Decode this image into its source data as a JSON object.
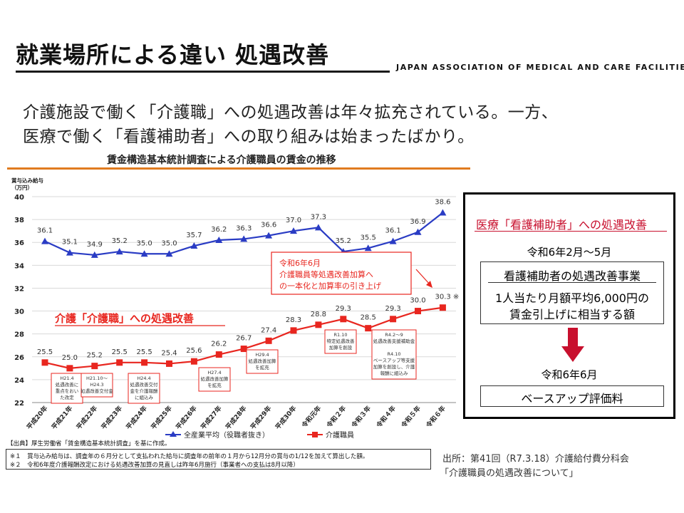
{
  "page": {
    "title": "就業場所による違い 処遇改善",
    "organization": "JAPAN ASSOCIATION OF MEDICAL AND CARE FACILITIES",
    "intro_line1": "介護施設で働く「介護職」への処遇改善は年々拡充されている。一方、",
    "intro_line2": "医療で働く「看護補助者」への取り組みは始まったばかり。"
  },
  "chart_data": {
    "type": "line",
    "title": "賃金構造基本統計調査による介護職員の賃金の推移",
    "ylabel": "賞与込み給与\n（万円）",
    "ylim": [
      22,
      40
    ],
    "yticks": [
      22,
      24,
      26,
      28,
      30,
      32,
      34,
      36,
      38,
      40
    ],
    "categories": [
      "平成20年",
      "平成21年",
      "平成22年",
      "平成23年",
      "平成24年",
      "平成25年",
      "平成26年",
      "平成27年",
      "平成28年",
      "平成29年",
      "平成30年",
      "令和元年",
      "令和２年",
      "令和３年",
      "令和４年",
      "令和５年",
      "令和６年"
    ],
    "series": [
      {
        "name": "全産業平均（役職者抜き）",
        "color": "#2a3cc4",
        "marker": "triangle",
        "values": [
          36.1,
          35.1,
          34.9,
          35.2,
          35.0,
          35.0,
          35.7,
          36.2,
          36.3,
          36.6,
          37.0,
          37.3,
          35.2,
          35.5,
          36.1,
          36.9,
          38.6
        ],
        "labels": [
          "36.1",
          "35.1",
          "34.9",
          "35.2",
          "35.0",
          "35.0",
          "35.7",
          "36.2",
          "36.3",
          "36.6",
          "37.0",
          "37.3",
          "35.2",
          "35.5",
          "36.1",
          "36.9",
          "38.6"
        ]
      },
      {
        "name": "介護職員",
        "color": "#e8261f",
        "marker": "square",
        "values": [
          25.5,
          25.0,
          25.2,
          25.5,
          25.5,
          25.4,
          25.6,
          26.2,
          26.7,
          27.4,
          28.3,
          28.8,
          29.3,
          28.5,
          29.3,
          30.0,
          30.3
        ],
        "labels": [
          "25.5",
          "25.0",
          "25.2",
          "25.5",
          "25.5",
          "25.4",
          "25.6",
          "26.2",
          "26.7",
          "27.4",
          "28.3",
          "28.8",
          "29.3",
          "28.5",
          "29.3",
          "30.0",
          "30.3 ※"
        ]
      }
    ],
    "series_label": "介護「介護職」への処遇改善",
    "callout": {
      "line1": "令和6年6月",
      "line2": "介護職員等処遇改善加算へ",
      "line3": "の一本化と加算率の引き上げ"
    },
    "annotations": [
      {
        "index": 1,
        "lines": [
          "H21.4",
          "処遇改善に",
          "重点をおい",
          "た改定"
        ]
      },
      {
        "index": 2,
        "lines": [
          "H21.10～",
          "H24.3",
          "処遇改善交付金"
        ]
      },
      {
        "index": 4,
        "lines": [
          "H24.4",
          "処遇改善交付",
          "金を介護報酬",
          "に組込み"
        ]
      },
      {
        "index": 7,
        "lines": [
          "H27.4",
          "処遇改善加算",
          "を拡充"
        ]
      },
      {
        "index": 9,
        "lines": [
          "H29.4",
          "処遇改善加算",
          "を拡充"
        ]
      },
      {
        "index": 12,
        "lines": [
          "R1.10",
          "特定処遇改善",
          "加算を創設"
        ]
      },
      {
        "index": 14,
        "lines": [
          "R4.2～9",
          "処遇改善支援補助金",
          "",
          "R4.10",
          "ベースアップ等支援",
          "加算を創設し、介護",
          "報酬に組込み"
        ]
      }
    ],
    "source": "【出典】厚生労働省「賃金構造基本統計調査」を基に作成。",
    "notes": [
      "※１　賞与込み給与は、調査年の６月分として支払われた給与に調査年の前年の１月から12月分の賞与の1/12を加えて算出した額。",
      "※２　令和6年度介護報酬改定における処遇改善加算の見直しは昨年6月施行（事業者への支払は8月以降）"
    ]
  },
  "panel": {
    "heading": "医療「看護補助者」への処遇改善",
    "date1": "令和6年2月～5月",
    "box1_title": "看護補助者の処遇改善事業",
    "box1_line1": "1人当たり月額平均6,000円の",
    "box1_line2": "賃金引上げに相当する額",
    "date2": "令和6年6月",
    "box2_text": "ベースアップ評価料"
  },
  "citation": {
    "line1": "出所：第41回（R7.3.18）介護給付費分科会",
    "line2": "「介護職員の処遇改善について」"
  },
  "colors": {
    "blue": "#2a3cc4",
    "red": "#e8261f",
    "orange": "#e07b1f",
    "panel_red": "#c8102e"
  }
}
